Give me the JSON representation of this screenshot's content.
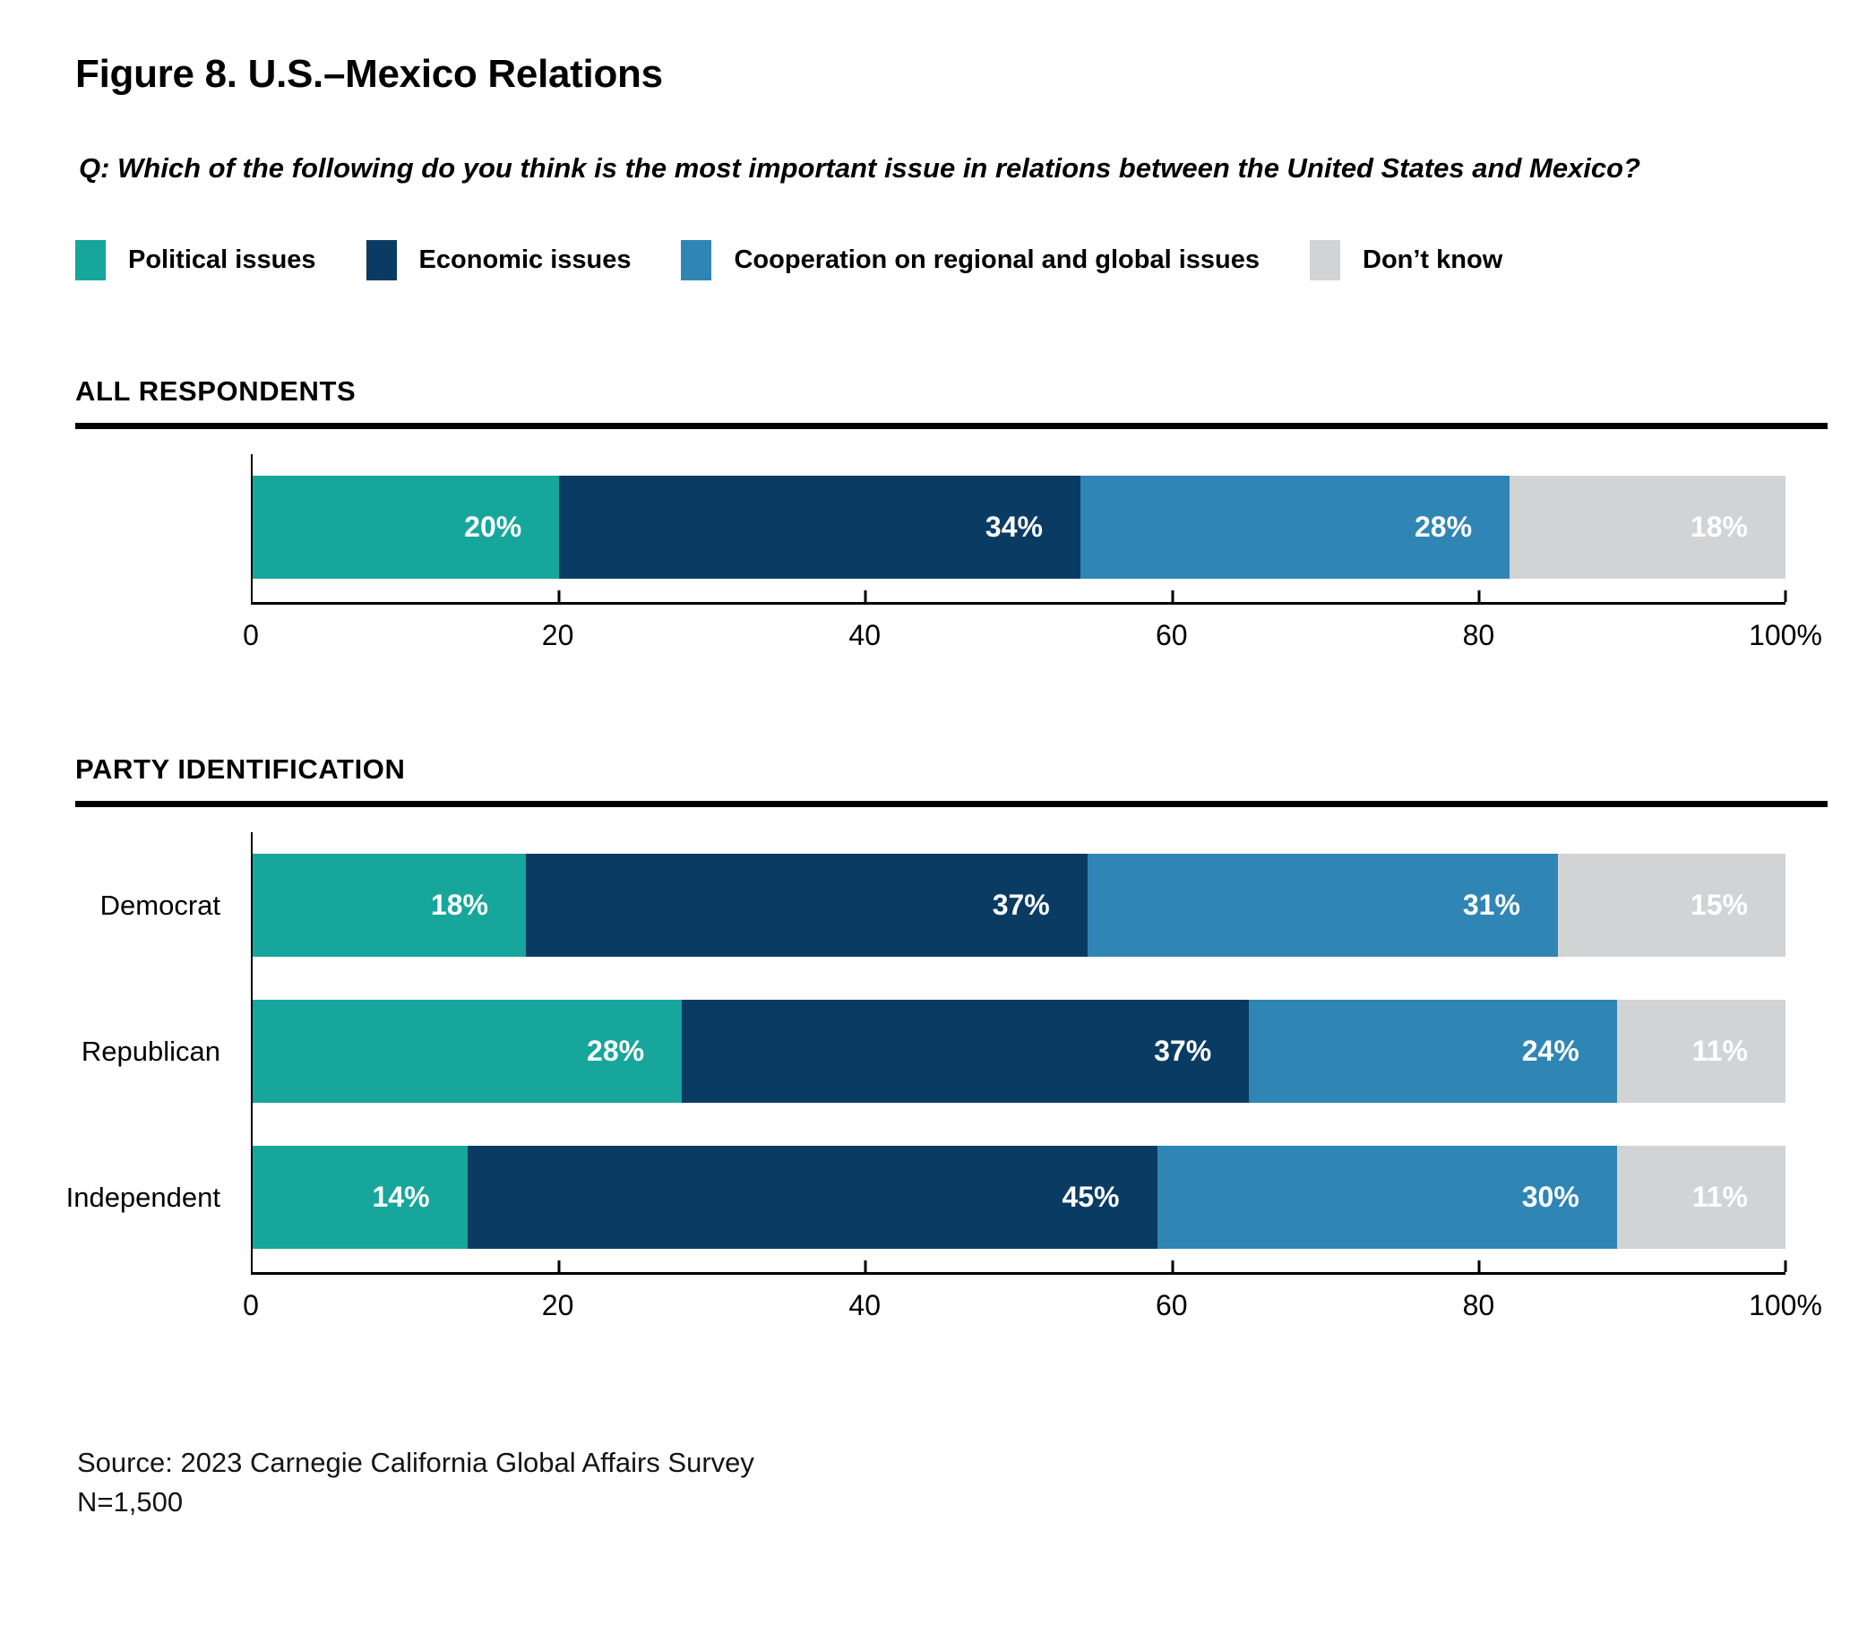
{
  "header": {
    "title": "Figure 8. U.S.–Mexico Relations",
    "question": "Q: Which of the following do you think is the most important issue in relations between the United States and Mexico?"
  },
  "legend": {
    "items": [
      {
        "label": "Political issues",
        "color": "#16A69B"
      },
      {
        "label": "Economic issues",
        "color": "#0A3B63"
      },
      {
        "label": "Cooperation on regional and global issues",
        "color": "#2F85B4"
      },
      {
        "label": "Don’t know",
        "color": "#D2D3D5"
      }
    ]
  },
  "sections": [
    {
      "heading": "ALL RESPONDENTS"
    },
    {
      "heading": "PARTY IDENTIFICATION"
    }
  ],
  "chart_data": [
    {
      "type": "bar",
      "subtype": "horizontal-stacked",
      "title": "ALL RESPONDENTS",
      "categories": [
        "All respondents"
      ],
      "show_category_labels": false,
      "series": [
        {
          "name": "Political issues",
          "values": [
            20
          ]
        },
        {
          "name": "Economic issues",
          "values": [
            34
          ]
        },
        {
          "name": "Cooperation on regional and global issues",
          "values": [
            28
          ]
        },
        {
          "name": "Don’t know",
          "values": [
            18
          ]
        }
      ],
      "unit": "%",
      "xlim": [
        0,
        100
      ],
      "xticks": [
        0,
        20,
        40,
        60,
        80,
        100
      ],
      "xtick_labels": [
        "0",
        "20",
        "40",
        "60",
        "80",
        "100%"
      ],
      "grid": false,
      "legend_position": "top"
    },
    {
      "type": "bar",
      "subtype": "horizontal-stacked",
      "title": "PARTY IDENTIFICATION",
      "categories": [
        "Democrat",
        "Republican",
        "Independent"
      ],
      "show_category_labels": true,
      "series": [
        {
          "name": "Political issues",
          "values": [
            18,
            28,
            14
          ]
        },
        {
          "name": "Economic issues",
          "values": [
            37,
            37,
            45
          ]
        },
        {
          "name": "Cooperation on regional and global issues",
          "values": [
            31,
            24,
            30
          ]
        },
        {
          "name": "Don’t know",
          "values": [
            15,
            11,
            11
          ]
        }
      ],
      "unit": "%",
      "xlim": [
        0,
        100
      ],
      "xticks": [
        0,
        20,
        40,
        60,
        80,
        100
      ],
      "xtick_labels": [
        "0",
        "20",
        "40",
        "60",
        "80",
        "100%"
      ],
      "grid": false,
      "legend_position": "top"
    }
  ],
  "footer": {
    "source": "Source: 2023 Carnegie California Global Affairs Survey",
    "n": "N=1,500"
  }
}
